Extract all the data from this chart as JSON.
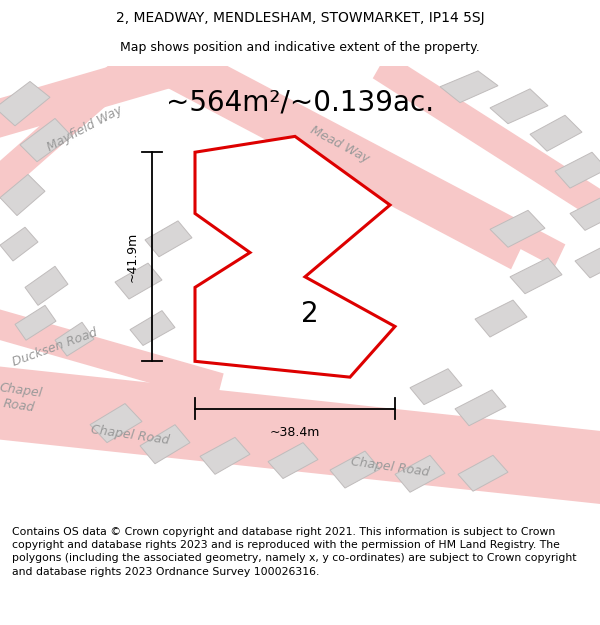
{
  "title": "2, MEADWAY, MENDLESHAM, STOWMARKET, IP14 5SJ",
  "subtitle": "Map shows position and indicative extent of the property.",
  "area_label": "~564m²/~0.139ac.",
  "plot_number": "2",
  "width_label": "~38.4m",
  "height_label": "~41.9m",
  "footer": "Contains OS data © Crown copyright and database right 2021. This information is subject to Crown copyright and database rights 2023 and is reproduced with the permission of HM Land Registry. The polygons (including the associated geometry, namely x, y co-ordinates) are subject to Crown copyright and database rights 2023 Ordnance Survey 100026316.",
  "map_bg": "#f2f0f0",
  "road_fill": "#f7c8c8",
  "road_outline": "#e8a0a0",
  "building_fill": "#d8d6d6",
  "building_edge": "#c0bcbc",
  "plot_fill": "#ffffff",
  "plot_edge": "#e8000000",
  "title_fontsize": 10,
  "subtitle_fontsize": 9,
  "area_fontsize": 20,
  "label_fontsize": 9,
  "road_label_fontsize": 9,
  "footer_fontsize": 7.8,
  "dim_fontsize": 9
}
